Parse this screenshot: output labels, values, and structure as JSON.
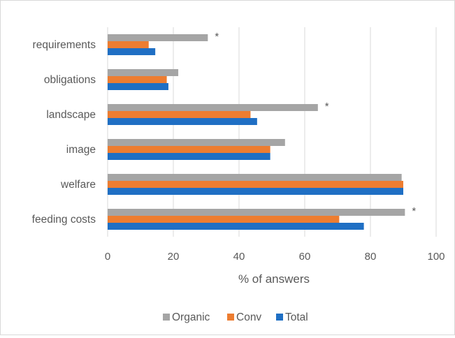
{
  "chart_data": {
    "type": "bar",
    "orientation": "horizontal",
    "categories": [
      "requirements",
      "obligations",
      "landscape",
      "image",
      "welfare",
      "feeding costs"
    ],
    "series": [
      {
        "name": "Organic",
        "color": "#a5a5a5",
        "values": [
          30.5,
          21.5,
          64,
          54,
          89.5,
          90.5
        ]
      },
      {
        "name": "Conv",
        "color": "#ed7d31",
        "values": [
          12.5,
          18,
          43.5,
          49.5,
          90,
          70.5
        ]
      },
      {
        "name": "Total",
        "color": "#1f6fc4",
        "values": [
          14.5,
          18.5,
          45.5,
          49.5,
          90,
          78
        ]
      }
    ],
    "significance_markers": [
      "*",
      "",
      "*",
      "",
      "",
      "*"
    ],
    "xlabel": "% of answers",
    "xlim": [
      0,
      100
    ],
    "xticks": [
      "0",
      "20",
      "40",
      "60",
      "80",
      "100"
    ],
    "grid": "vertical",
    "legend_position": "bottom"
  }
}
